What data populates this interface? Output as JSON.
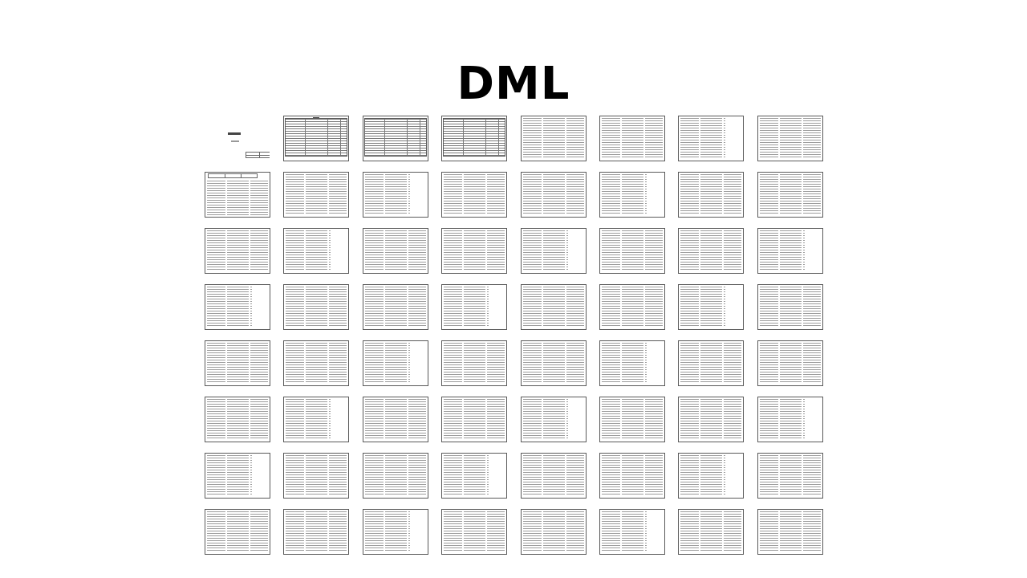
{
  "heading": "DML",
  "thumbnails": {
    "rows": 8,
    "columns": 8,
    "kinds": [
      [
        "title",
        "table",
        "table",
        "table",
        "text",
        "text",
        "text",
        "text"
      ],
      [
        "header-text",
        "text",
        "text",
        "text",
        "text",
        "text",
        "text",
        "text"
      ],
      [
        "text",
        "text",
        "text",
        "text",
        "text",
        "text",
        "text",
        "text"
      ],
      [
        "text",
        "text",
        "text",
        "text",
        "text",
        "text",
        "text",
        "text"
      ],
      [
        "text",
        "text",
        "text",
        "text",
        "text",
        "text",
        "text",
        "text"
      ],
      [
        "text",
        "text",
        "text",
        "text",
        "text",
        "text",
        "text",
        "text"
      ],
      [
        "text",
        "text",
        "text",
        "text",
        "text",
        "text",
        "text",
        "text"
      ],
      [
        "text",
        "text",
        "text",
        "text",
        "text",
        "text",
        "text",
        "text"
      ]
    ]
  }
}
